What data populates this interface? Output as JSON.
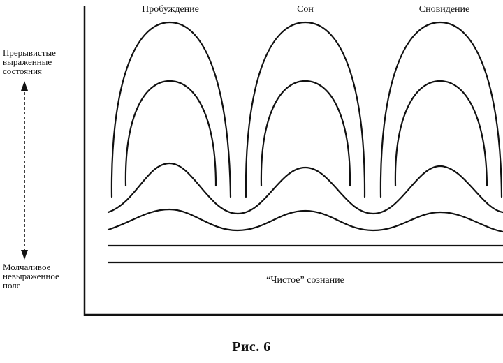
{
  "phases": {
    "waking": "Пробуждение",
    "sleep": "Сон",
    "dreaming": "Сновидение"
  },
  "left_labels": {
    "top": [
      "Прерывистые",
      "выраженные",
      "состояния"
    ],
    "bottom": [
      "Молчаливое",
      "невыраженное",
      "поле"
    ]
  },
  "base_label": "“Чистое” сознание",
  "caption": "Рис. 6",
  "colors": {
    "ink": "#111111",
    "background": "#ffffff"
  }
}
